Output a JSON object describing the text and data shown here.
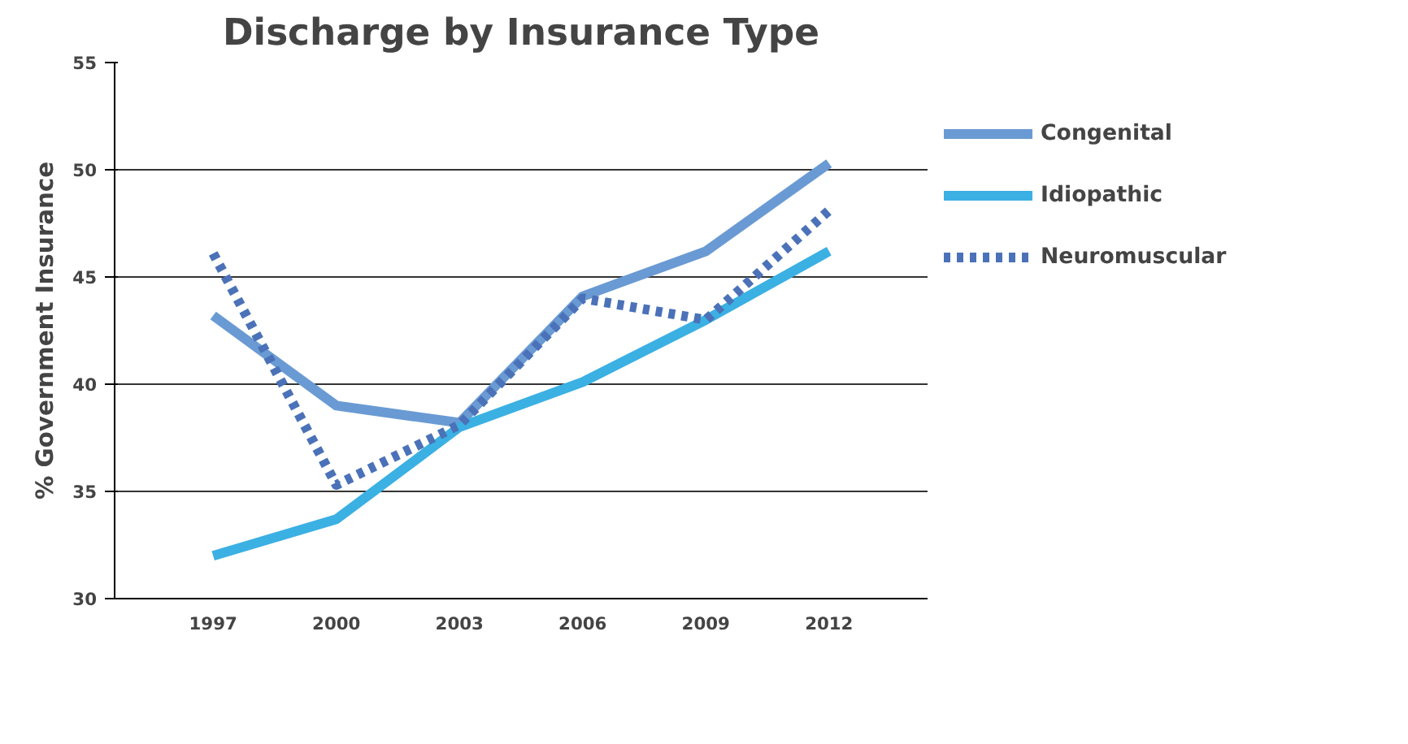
{
  "chart_data": {
    "type": "line",
    "title": "Discharge by Insurance Type",
    "ylabel": "% Government Insurance",
    "categories": [
      "1997",
      "2000",
      "2003",
      "2006",
      "2009",
      "2012"
    ],
    "series": [
      {
        "name": "Congenital",
        "color": "#6a9ad3",
        "values": [
          43.2,
          39.0,
          38.2,
          44.1,
          46.2,
          50.3
        ]
      },
      {
        "name": "Idiopathic",
        "color": "#3bb0e3",
        "values": [
          32.0,
          33.7,
          38.0,
          40.1,
          43.0,
          46.2
        ]
      },
      {
        "name": "Neuromuscular",
        "color": "#4b72b8",
        "line_style": "dashed",
        "values": [
          46.1,
          35.3,
          38.1,
          44.0,
          43.0,
          48.1
        ]
      }
    ],
    "ylim": [
      30,
      55
    ],
    "yticks": [
      30,
      35,
      40,
      45,
      50,
      55
    ],
    "grid": "y",
    "legend": "right",
    "marker": "none"
  }
}
